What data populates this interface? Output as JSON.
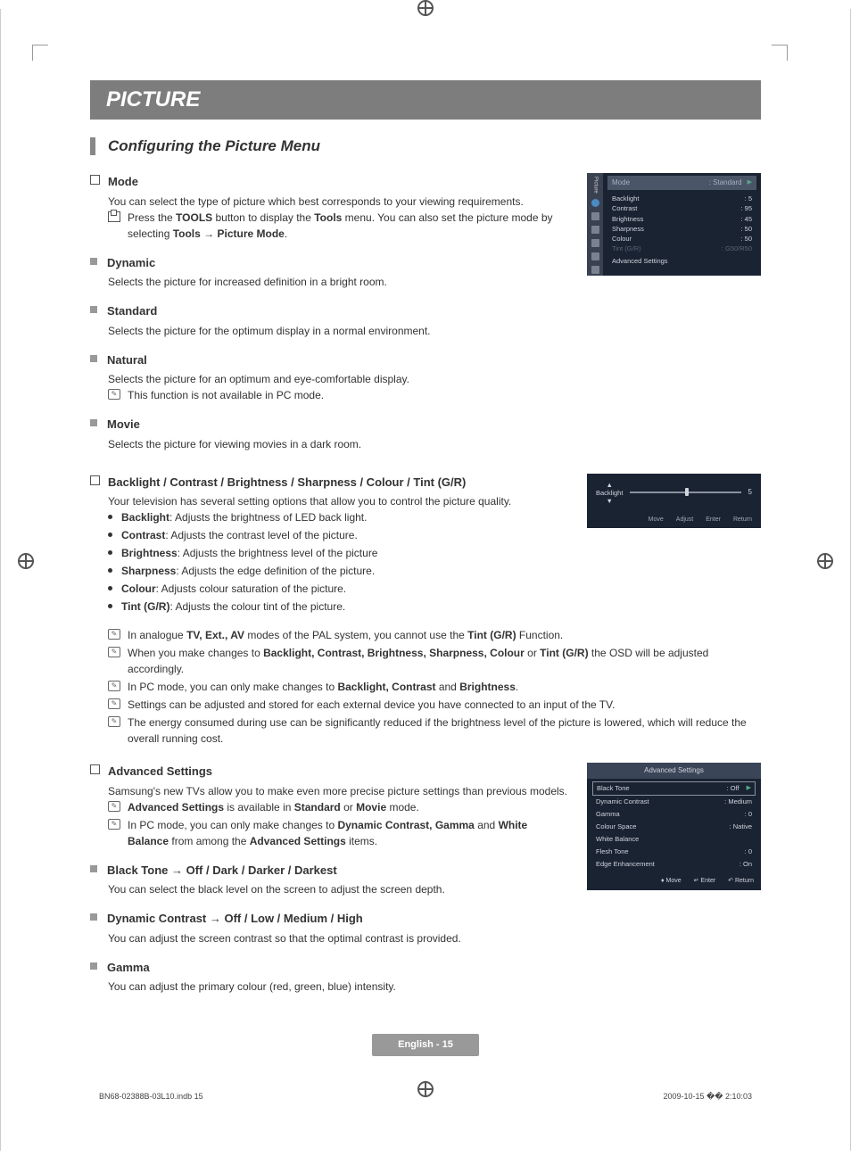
{
  "header": {
    "title": "PICTURE"
  },
  "subsection": {
    "title": "Configuring the Picture Menu"
  },
  "mode": {
    "title": "Mode",
    "intro": "You can select the type of picture which best corresponds to your viewing requirements.",
    "toolsNote": "Press the TOOLS button to display the Tools menu. You can also set the picture mode by selecting Tools → Picture Mode.",
    "dynamic": {
      "title": "Dynamic",
      "desc": "Selects the picture for increased definition in a bright room."
    },
    "standard": {
      "title": "Standard",
      "desc": "Selects the picture for the optimum display in a normal environment."
    },
    "natural": {
      "title": "Natural",
      "desc": "Selects the picture for an optimum and eye-comfortable display.",
      "note": "This function is not available in PC mode."
    },
    "movie": {
      "title": "Movie",
      "desc": "Selects the picture for viewing movies in a dark room."
    }
  },
  "settings": {
    "title": "Backlight / Contrast / Brightness / Sharpness / Colour / Tint (G/R)",
    "intro": "Your television has several setting options that allow you to control the picture quality.",
    "items": [
      {
        "name": "Backlight",
        "desc": ": Adjusts the brightness of LED back light."
      },
      {
        "name": "Contrast",
        "desc": ": Adjusts the contrast level of the picture."
      },
      {
        "name": "Brightness",
        "desc": ": Adjusts the brightness level of the picture"
      },
      {
        "name": "Sharpness",
        "desc": ": Adjusts the edge definition of the picture."
      },
      {
        "name": "Colour",
        "desc": ": Adjusts colour saturation of the picture."
      },
      {
        "name": "Tint (G/R)",
        "desc": ": Adjusts the colour tint of the picture."
      }
    ],
    "notes": [
      "In analogue TV, Ext., AV modes of the PAL system, you cannot use the Tint (G/R) Function.",
      "When you make changes to Backlight, Contrast, Brightness, Sharpness, Colour or Tint (G/R) the OSD will be adjusted accordingly.",
      "In PC mode, you can only make changes to Backlight, Contrast and Brightness.",
      "Settings can be adjusted and stored for each external device you have connected to an input of the TV.",
      "The energy consumed during use can be significantly reduced if the brightness level of the picture is lowered, which will reduce the overall running cost."
    ]
  },
  "advanced": {
    "title": "Advanced Settings",
    "intro": "Samsung's new TVs allow you to make even more precise picture settings than previous models.",
    "notes": [
      "Advanced Settings is available in Standard or Movie mode.",
      "In PC mode, you can only make changes to Dynamic Contrast, Gamma and White Balance from among the Advanced Settings items."
    ],
    "blackTone": {
      "title": "Black Tone → Off / Dark / Darker / Darkest",
      "desc": "You can select the black level on the screen to adjust the screen depth."
    },
    "dynamicContrast": {
      "title": "Dynamic Contrast → Off / Low / Medium / High",
      "desc": "You can adjust the screen contrast so that the optimal contrast is provided."
    },
    "gamma": {
      "title": "Gamma",
      "desc": "You can adjust the primary colour (red, green, blue) intensity."
    }
  },
  "osd1": {
    "sidebarLabel": "Picture",
    "mode": "Mode",
    "modeVal": ": Standard",
    "rows": [
      {
        "k": "Backlight",
        "v": ": 5"
      },
      {
        "k": "Contrast",
        "v": ": 95"
      },
      {
        "k": "Brightness",
        "v": ": 45"
      },
      {
        "k": "Sharpness",
        "v": ": 50"
      },
      {
        "k": "Colour",
        "v": ": 50"
      }
    ],
    "tint": {
      "k": "Tint (G/R)",
      "v": ": G50/R50"
    },
    "adv": "Advanced Settings"
  },
  "osd2": {
    "up": "▲",
    "down": "▼",
    "label": "Backlight",
    "value": "5",
    "footer": [
      "Move",
      "Adjust",
      "Enter",
      "Return"
    ],
    "thumbPercent": 50
  },
  "osd3": {
    "header": "Advanced Settings",
    "rows": [
      {
        "k": "Black Tone",
        "v": ": Off",
        "hl": true,
        "arrow": "▶"
      },
      {
        "k": "Dynamic Contrast",
        "v": ": Medium"
      },
      {
        "k": "Gamma",
        "v": ": 0"
      },
      {
        "k": "Colour Space",
        "v": ": Native"
      },
      {
        "k": "White Balance",
        "v": ""
      },
      {
        "k": "Flesh Tone",
        "v": ": 0"
      },
      {
        "k": "Edge Enhancement",
        "v": ": On"
      }
    ],
    "footer": [
      "Move",
      "Enter",
      "Return"
    ],
    "footerSymbols": [
      "♦",
      "↵",
      "↶"
    ]
  },
  "footer": {
    "page": "English - 15",
    "docLeft": "BN68-02388B-03L10.indb   15",
    "docRight": "2009-10-15   �� 2:10:03"
  }
}
